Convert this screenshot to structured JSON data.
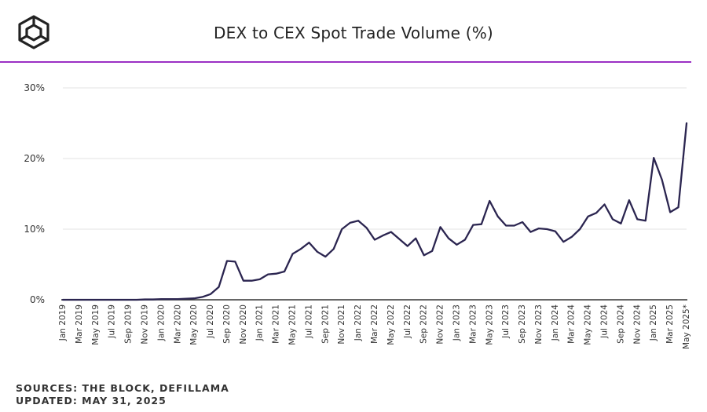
{
  "header": {
    "logo_icon": "the-block-cube-logo-icon",
    "title": "DEX to CEX Spot Trade Volume (%)",
    "rule_color": "#9b2fc4"
  },
  "footer": {
    "sources": "SOURCES: THE BLOCK, DEFILLAMA",
    "updated": "UPDATED: MAY 31, 2025"
  },
  "chart_data": {
    "type": "line",
    "title": "DEX to CEX Spot Trade Volume (%)",
    "xlabel": "",
    "ylabel": "",
    "ylim": [
      0,
      30
    ],
    "y_ticks": [
      0,
      10,
      20,
      30
    ],
    "y_tick_labels": [
      "0%",
      "10%",
      "20%",
      "30%"
    ],
    "grid": true,
    "line_color": "#2b2550",
    "x_tick_labels": [
      "Jan 2019",
      "Mar 2019",
      "May 2019",
      "Jul 2019",
      "Sep 2019",
      "Nov 2019",
      "Jan 2020",
      "Mar 2020",
      "May 2020",
      "Jul 2020",
      "Sep 2020",
      "Nov 2020",
      "Jan 2021",
      "Mar 2021",
      "May 2021",
      "Jul 2021",
      "Sep 2021",
      "Nov 2021",
      "Jan 2022",
      "Mar 2022",
      "May 2022",
      "Jul 2022",
      "Sep 2022",
      "Nov 2022",
      "Jan 2023",
      "Mar 2023",
      "May 2023",
      "Jul 2023",
      "Sep 2023",
      "Nov 2023",
      "Jan 2024",
      "Mar 2024",
      "May 2024",
      "Jul 2024",
      "Sep 2024",
      "Nov 2024",
      "Jan 2025",
      "Mar 2025",
      "May 2025*"
    ],
    "series": [
      {
        "name": "DEX to CEX Spot Trade Volume (%)",
        "x": [
          "Jan 2019",
          "Feb 2019",
          "Mar 2019",
          "Apr 2019",
          "May 2019",
          "Jun 2019",
          "Jul 2019",
          "Aug 2019",
          "Sep 2019",
          "Oct 2019",
          "Nov 2019",
          "Dec 2019",
          "Jan 2020",
          "Feb 2020",
          "Mar 2020",
          "Apr 2020",
          "May 2020",
          "Jun 2020",
          "Jul 2020",
          "Aug 2020",
          "Sep 2020",
          "Oct 2020",
          "Nov 2020",
          "Dec 2020",
          "Jan 2021",
          "Feb 2021",
          "Mar 2021",
          "Apr 2021",
          "May 2021",
          "Jun 2021",
          "Jul 2021",
          "Aug 2021",
          "Sep 2021",
          "Oct 2021",
          "Nov 2021",
          "Dec 2021",
          "Jan 2022",
          "Feb 2022",
          "Mar 2022",
          "Apr 2022",
          "May 2022",
          "Jun 2022",
          "Jul 2022",
          "Aug 2022",
          "Sep 2022",
          "Oct 2022",
          "Nov 2022",
          "Dec 2022",
          "Jan 2023",
          "Feb 2023",
          "Mar 2023",
          "Apr 2023",
          "May 2023",
          "Jun 2023",
          "Jul 2023",
          "Aug 2023",
          "Sep 2023",
          "Oct 2023",
          "Nov 2023",
          "Dec 2023",
          "Jan 2024",
          "Feb 2024",
          "Mar 2024",
          "Apr 2024",
          "May 2024",
          "Jun 2024",
          "Jul 2024",
          "Aug 2024",
          "Sep 2024",
          "Oct 2024",
          "Nov 2024",
          "Dec 2024",
          "Jan 2025",
          "Feb 2025",
          "Mar 2025",
          "Apr 2025",
          "May 2025*"
        ],
        "values": [
          0.0,
          0.0,
          0.0,
          0.0,
          0.0,
          0.0,
          0.0,
          0.0,
          0.0,
          0.0,
          0.05,
          0.05,
          0.1,
          0.1,
          0.1,
          0.15,
          0.2,
          0.4,
          0.8,
          1.8,
          5.5,
          5.4,
          2.7,
          2.7,
          2.9,
          3.6,
          3.7,
          4.0,
          6.5,
          7.2,
          8.1,
          6.8,
          6.1,
          7.2,
          10.0,
          10.9,
          11.2,
          10.2,
          8.5,
          9.1,
          9.6,
          8.6,
          7.6,
          8.7,
          6.3,
          6.9,
          10.3,
          8.7,
          7.8,
          8.5,
          10.6,
          10.7,
          14.0,
          11.8,
          10.5,
          10.5,
          11.0,
          9.6,
          10.1,
          10.0,
          9.7,
          8.2,
          8.9,
          10.0,
          11.8,
          12.3,
          13.5,
          11.4,
          10.8,
          14.1,
          11.4,
          11.2,
          20.1,
          17.0,
          12.4,
          13.1,
          25.0
        ]
      }
    ]
  }
}
